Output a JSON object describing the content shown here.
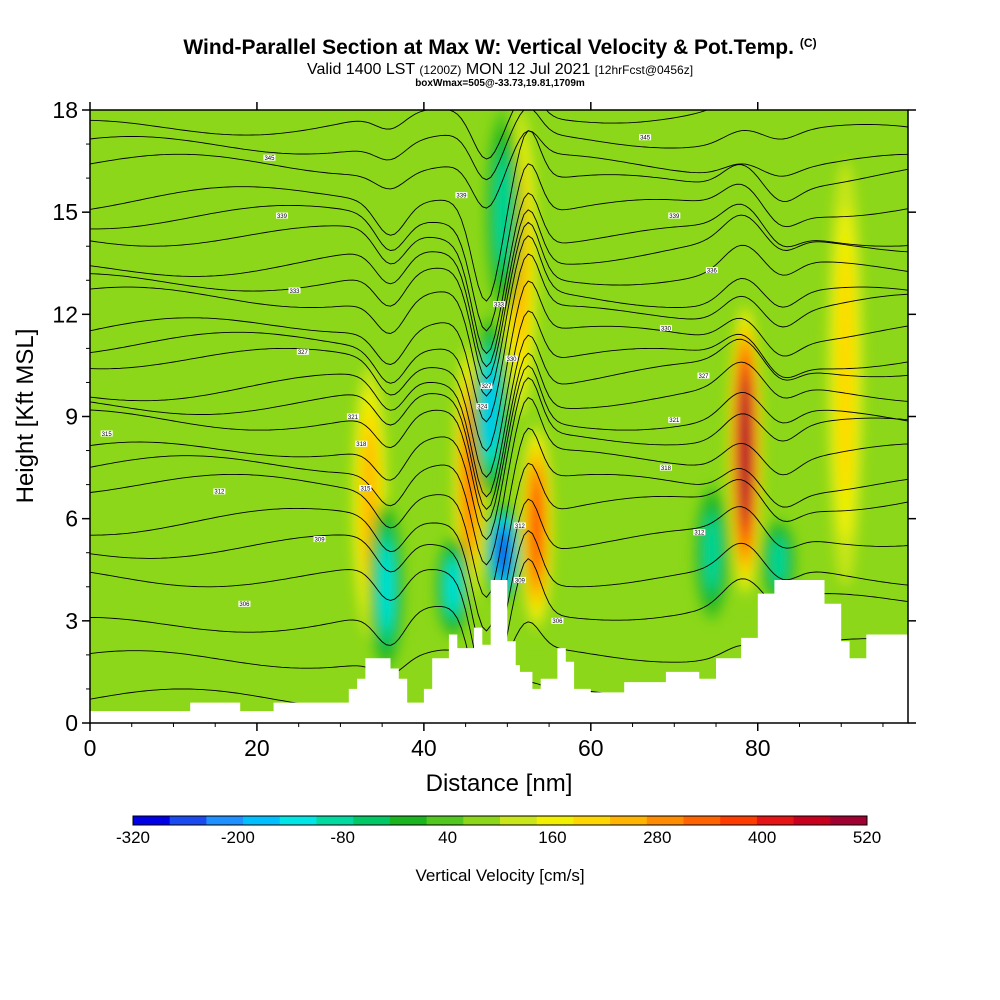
{
  "header": {
    "title": "Wind-Parallel Section at Max W: Vertical Velocity & Pot.Temp.",
    "title_mark": "(C)",
    "valid_prefix": "Valid 1400 LST",
    "valid_zulu": "(1200Z)",
    "valid_date": "MON 12 Jul 2021",
    "forecast": "[12hrFcst@0456z]",
    "boxmax": "boxWmax=505@-33.73,19.81,1709m"
  },
  "chart_data": {
    "type": "contour",
    "xlabel": "Distance [nm]",
    "ylabel": "Height [Kft MSL]",
    "xlim": [
      0,
      98
    ],
    "ylim": [
      0,
      18
    ],
    "xticks": [
      0,
      20,
      40,
      60,
      80
    ],
    "yticks": [
      0,
      3,
      6,
      9,
      12,
      15,
      18
    ],
    "colorbar": {
      "label": "Vertical Velocity [cm/s]",
      "min": -320,
      "max": 520,
      "step": 40,
      "tick_labels": [
        "-320",
        "-200",
        "-80",
        "40",
        "160",
        "280",
        "400",
        "520"
      ],
      "colors": [
        "#0000e6",
        "#1a4bf0",
        "#1e90ff",
        "#00bfff",
        "#00e5e5",
        "#00d9a0",
        "#00c864",
        "#19b41e",
        "#50c81e",
        "#8cd719",
        "#c8e619",
        "#f0f000",
        "#ffd700",
        "#ffb400",
        "#ff8c00",
        "#ff6400",
        "#ff3c00",
        "#e61414",
        "#c8001e",
        "#a00032"
      ]
    },
    "background_w": 40,
    "updrafts": [
      {
        "x": 33.5,
        "y_bottom": 2.5,
        "y_top": 10.5,
        "peak": 200
      },
      {
        "x": 45.5,
        "y_bottom": 3.0,
        "y_top": 11.5,
        "peak": 300
      },
      {
        "x": 51.5,
        "y_bottom": 9.0,
        "y_top": 18.0,
        "peak": 200
      },
      {
        "x": 53.5,
        "y_bottom": 2.5,
        "y_top": 9.0,
        "peak": 330
      },
      {
        "x": 78.5,
        "y_bottom": 3.5,
        "y_top": 12.5,
        "peak": 505
      },
      {
        "x": 90.5,
        "y_bottom": 4.0,
        "y_top": 16.5,
        "peak": 160
      }
    ],
    "downdrafts": [
      {
        "x": 35.5,
        "y_bottom": 1.5,
        "y_top": 6.5,
        "peak": -150
      },
      {
        "x": 43.5,
        "y_bottom": 2.5,
        "y_top": 5.5,
        "peak": -130
      },
      {
        "x": 49.5,
        "y_bottom": 3.5,
        "y_top": 6.5,
        "peak": -300
      },
      {
        "x": 48.0,
        "y_bottom": 6.5,
        "y_top": 12.0,
        "peak": -200
      },
      {
        "x": 49.5,
        "y_bottom": 12.0,
        "y_top": 18.0,
        "peak": -110
      },
      {
        "x": 74.5,
        "y_bottom": 3.0,
        "y_top": 7.0,
        "peak": -110
      },
      {
        "x": 82.5,
        "y_bottom": 3.5,
        "y_top": 6.0,
        "peak": -110
      }
    ],
    "terrain": [
      [
        0,
        0.35
      ],
      [
        12,
        0.35
      ],
      [
        12,
        0.6
      ],
      [
        18,
        0.6
      ],
      [
        18,
        0.35
      ],
      [
        22,
        0.35
      ],
      [
        22,
        0.6
      ],
      [
        31,
        0.6
      ],
      [
        31,
        1.0
      ],
      [
        32,
        1.0
      ],
      [
        32,
        1.3
      ],
      [
        33,
        1.3
      ],
      [
        33,
        1.9
      ],
      [
        36,
        1.9
      ],
      [
        36,
        1.6
      ],
      [
        37,
        1.6
      ],
      [
        37,
        1.3
      ],
      [
        38,
        1.3
      ],
      [
        38,
        0.6
      ],
      [
        40,
        0.6
      ],
      [
        40,
        1.0
      ],
      [
        41,
        1.0
      ],
      [
        41,
        1.9
      ],
      [
        43,
        1.9
      ],
      [
        43,
        2.6
      ],
      [
        44,
        2.6
      ],
      [
        44,
        2.2
      ],
      [
        46,
        2.2
      ],
      [
        46,
        2.8
      ],
      [
        47,
        2.8
      ],
      [
        47,
        2.3
      ],
      [
        48,
        2.3
      ],
      [
        48,
        4.2
      ],
      [
        50,
        4.2
      ],
      [
        50,
        2.4
      ],
      [
        51,
        2.4
      ],
      [
        51,
        1.7
      ],
      [
        51.5,
        1.7
      ],
      [
        51.5,
        1.5
      ],
      [
        53,
        1.5
      ],
      [
        53,
        1.0
      ],
      [
        54,
        1.0
      ],
      [
        54,
        1.3
      ],
      [
        56,
        1.3
      ],
      [
        56,
        2.2
      ],
      [
        57,
        2.2
      ],
      [
        57,
        1.8
      ],
      [
        58,
        1.8
      ],
      [
        58,
        1.0
      ],
      [
        60,
        1.0
      ],
      [
        60,
        0.9
      ],
      [
        61,
        0.9
      ],
      [
        61,
        0.9
      ],
      [
        64,
        0.9
      ],
      [
        64,
        1.2
      ],
      [
        69,
        1.2
      ],
      [
        69,
        1.5
      ],
      [
        73,
        1.5
      ],
      [
        73,
        1.3
      ],
      [
        75,
        1.3
      ],
      [
        75,
        1.9
      ],
      [
        78,
        1.9
      ],
      [
        78,
        2.5
      ],
      [
        80,
        2.5
      ],
      [
        80,
        3.8
      ],
      [
        82,
        3.8
      ],
      [
        82,
        4.2
      ],
      [
        88,
        4.2
      ],
      [
        88,
        3.5
      ],
      [
        90,
        3.5
      ],
      [
        90,
        2.4
      ],
      [
        91,
        2.4
      ],
      [
        91,
        1.9
      ],
      [
        93,
        1.9
      ],
      [
        93,
        2.6
      ],
      [
        97,
        2.6
      ],
      [
        97,
        2.6
      ],
      [
        98,
        2.6
      ]
    ],
    "isentrope_baselines": [
      0.7,
      2.0,
      3.2,
      4.3,
      5.3,
      6.2,
      7.0,
      7.7,
      8.3,
      8.9,
      9.5,
      10.1,
      10.7,
      11.3,
      11.9,
      12.5,
      13.1,
      13.7,
      14.3,
      15.0,
      15.7,
      16.4,
      17.1,
      17.8
    ],
    "isentrope_labels": [
      {
        "x": 2,
        "y": 8.5,
        "text": "315"
      },
      {
        "x": 15.5,
        "y": 6.8,
        "text": "312"
      },
      {
        "x": 21.5,
        "y": 16.6,
        "text": "345"
      },
      {
        "x": 23,
        "y": 14.9,
        "text": "339"
      },
      {
        "x": 24.5,
        "y": 12.7,
        "text": "333"
      },
      {
        "x": 25.5,
        "y": 10.9,
        "text": "327"
      },
      {
        "x": 18.5,
        "y": 3.5,
        "text": "306"
      },
      {
        "x": 27.5,
        "y": 5.4,
        "text": "309"
      },
      {
        "x": 31.5,
        "y": 9.0,
        "text": "321"
      },
      {
        "x": 32.5,
        "y": 8.2,
        "text": "318"
      },
      {
        "x": 33,
        "y": 6.9,
        "text": "315"
      },
      {
        "x": 44.5,
        "y": 15.5,
        "text": "339"
      },
      {
        "x": 49,
        "y": 12.3,
        "text": "333"
      },
      {
        "x": 47.5,
        "y": 9.9,
        "text": "327"
      },
      {
        "x": 47,
        "y": 9.3,
        "text": "324"
      },
      {
        "x": 50.5,
        "y": 10.7,
        "text": "330"
      },
      {
        "x": 51.5,
        "y": 5.8,
        "text": "312"
      },
      {
        "x": 51.5,
        "y": 4.2,
        "text": "309"
      },
      {
        "x": 56,
        "y": 3.0,
        "text": "306"
      },
      {
        "x": 66.5,
        "y": 17.2,
        "text": "345"
      },
      {
        "x": 70,
        "y": 14.9,
        "text": "339"
      },
      {
        "x": 74.5,
        "y": 13.3,
        "text": "336"
      },
      {
        "x": 69,
        "y": 11.6,
        "text": "330"
      },
      {
        "x": 73.5,
        "y": 10.2,
        "text": "327"
      },
      {
        "x": 70,
        "y": 8.9,
        "text": "321"
      },
      {
        "x": 69,
        "y": 7.5,
        "text": "318"
      },
      {
        "x": 73,
        "y": 5.6,
        "text": "312"
      }
    ]
  }
}
